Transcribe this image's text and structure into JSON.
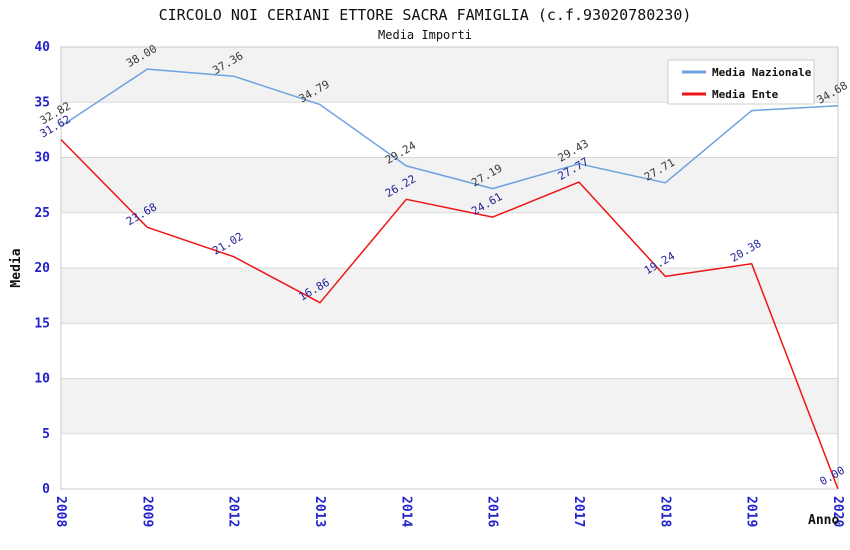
{
  "page": {
    "background": "#ffffff"
  },
  "chart_data": {
    "type": "line",
    "title": "CIRCOLO NOI CERIANI ETTORE SACRA FAMIGLIA (c.f.93020780230)",
    "subtitle": "Media Importi",
    "xlabel": "Anno",
    "ylabel": "Media",
    "categories": [
      "2008",
      "2009",
      "2012",
      "2013",
      "2014",
      "2016",
      "2017",
      "2018",
      "2019",
      "2020"
    ],
    "yticks": [
      0,
      5,
      10,
      15,
      20,
      25,
      30,
      35,
      40
    ],
    "ylim": [
      0,
      40
    ],
    "grid": "horizontal",
    "plot_bands_alternating": true,
    "legend_position": "top-right",
    "series": [
      {
        "name": "Media Nazionale",
        "color": "#6ea2e0",
        "label_color": "#3a3a3a",
        "values": [
          32.82,
          38.0,
          37.36,
          34.79,
          29.24,
          27.19,
          29.43,
          27.71,
          34.24,
          34.68
        ],
        "labels": [
          "32.82",
          "38.00",
          "37.36",
          "34.79",
          "29.24",
          "27.19",
          "29.43",
          "27.71",
          "",
          "34.68"
        ]
      },
      {
        "name": "Media Ente",
        "color": "#ee1515",
        "label_color": "#232399",
        "values": [
          31.62,
          23.68,
          21.02,
          16.86,
          26.22,
          24.61,
          27.77,
          19.24,
          20.38,
          0.0
        ],
        "labels": [
          "31.62",
          "23.68",
          "21.02",
          "16.86",
          "26.22",
          "24.61",
          "27.77",
          "19.24",
          "20.38",
          "0.00"
        ]
      }
    ],
    "colors": {
      "tick_label": "#2323cc",
      "grid_line": "#d9d9d9",
      "band": "#f2f2f2",
      "plot_border": "#c9c9c9",
      "legend_bg": "#ffffff",
      "legend_border": "#cfcfcf"
    }
  }
}
